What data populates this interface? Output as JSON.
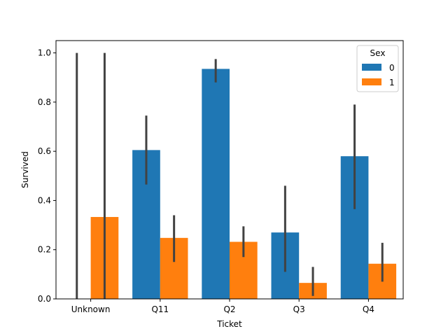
{
  "chart_data": {
    "type": "bar",
    "title": "",
    "xlabel": "Ticket",
    "ylabel": "Survived",
    "categories": [
      "Unknown",
      "Q11",
      "Q2",
      "Q3",
      "Q4"
    ],
    "ylim": [
      0,
      1.05
    ],
    "yticks": [
      0.0,
      0.2,
      0.4,
      0.6,
      0.8,
      1.0
    ],
    "ytick_labels": [
      "0.0",
      "0.2",
      "0.4",
      "0.6",
      "0.8",
      "1.0"
    ],
    "grid": false,
    "legend": {
      "title": "Sex",
      "placement": "top-right"
    },
    "series": [
      {
        "name": "0",
        "color": "#1f77b4",
        "values": [
          0.0,
          0.605,
          0.935,
          0.27,
          0.58
        ],
        "ci": [
          [
            0.0,
            1.0
          ],
          [
            0.465,
            0.745
          ],
          [
            0.88,
            0.975
          ],
          [
            0.11,
            0.46
          ],
          [
            0.365,
            0.79
          ]
        ]
      },
      {
        "name": "1",
        "color": "#ff7f0e",
        "values": [
          0.333,
          0.248,
          0.232,
          0.065,
          0.143
        ],
        "ci": [
          [
            0.0,
            1.0
          ],
          [
            0.15,
            0.34
          ],
          [
            0.17,
            0.295
          ],
          [
            0.012,
            0.13
          ],
          [
            0.07,
            0.228
          ]
        ]
      }
    ],
    "errorbar_color": "#424242"
  }
}
